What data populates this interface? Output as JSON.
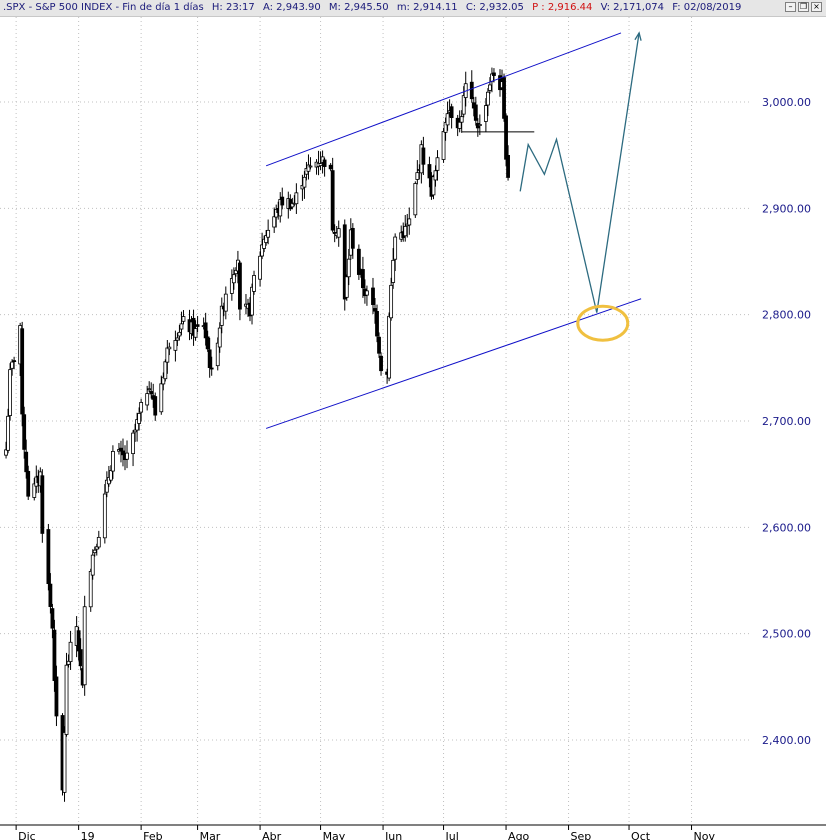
{
  "header": {
    "symbol": ".SPX - S&P 500 INDEX - Fin de día 1 días",
    "h": "H: 23:17",
    "a": "A: 2,943.90",
    "m": "M: 2,945.50",
    "mm": "m: 2,914.11",
    "c": "C: 2,932.05",
    "p": "P : 2,916.44",
    "v": "V: 2,171,074",
    "f": "F: 02/08/2019",
    "minimize_label": "–",
    "restore_label": "❐",
    "close_label": "×"
  },
  "colors": {
    "header_bg": "#e6e6e6",
    "header_text": "#1a1a7a",
    "price_tag": "#d01010",
    "price_label": "#1a1a8a",
    "channel_line": "#1010c8",
    "projection": "#2d6b80",
    "highlight": "#f0c040",
    "candle": "#000000",
    "grid": "#c0c0c0"
  },
  "chart_data": {
    "type": "candlestick",
    "title": ".SPX - S&P 500 INDEX",
    "ylim": [
      2320,
      3080
    ],
    "y_ticks": [
      2400,
      2500,
      2600,
      2700,
      2800,
      2900,
      3000
    ],
    "y_tick_labels": [
      "2,400.00",
      "2,500.00",
      "2,600.00",
      "2,700.00",
      "2,800.00",
      "2,900.00",
      "3,000.00"
    ],
    "x_start": "2018-11-23",
    "x_end": "2019-11-30",
    "months": [
      {
        "date": "2018-12-01",
        "label": "Dic"
      },
      {
        "date": "2019-01-01",
        "label": "19"
      },
      {
        "date": "2019-02-01",
        "label": "Feb"
      },
      {
        "date": "2019-03-01",
        "label": "Mar"
      },
      {
        "date": "2019-04-01",
        "label": "Abr"
      },
      {
        "date": "2019-05-01",
        "label": "May"
      },
      {
        "date": "2019-06-01",
        "label": "Jun"
      },
      {
        "date": "2019-07-01",
        "label": "Jul"
      },
      {
        "date": "2019-08-01",
        "label": "Ago"
      },
      {
        "date": "2019-09-01",
        "label": "Sep"
      },
      {
        "date": "2019-10-01",
        "label": "Oct"
      },
      {
        "date": "2019-11-01",
        "label": "Nov"
      }
    ],
    "close_path": [
      [
        "2018-11-26",
        2673
      ],
      [
        "2018-11-28",
        2743
      ],
      [
        "2018-11-30",
        2760
      ],
      [
        "2018-12-03",
        2790
      ],
      [
        "2018-12-04",
        2700
      ],
      [
        "2018-12-07",
        2633
      ],
      [
        "2018-12-10",
        2637
      ],
      [
        "2018-12-13",
        2650
      ],
      [
        "2018-12-14",
        2600
      ],
      [
        "2018-12-17",
        2545
      ],
      [
        "2018-12-19",
        2506
      ],
      [
        "2018-12-21",
        2416
      ],
      [
        "2018-12-24",
        2351
      ],
      [
        "2018-12-26",
        2467
      ],
      [
        "2018-12-28",
        2485
      ],
      [
        "2018-12-31",
        2507
      ],
      [
        "2019-01-03",
        2447
      ],
      [
        "2019-01-04",
        2532
      ],
      [
        "2019-01-08",
        2574
      ],
      [
        "2019-01-11",
        2596
      ],
      [
        "2019-01-18",
        2670
      ],
      [
        "2019-01-25",
        2664
      ],
      [
        "2019-01-31",
        2704
      ],
      [
        "2019-02-05",
        2737
      ],
      [
        "2019-02-08",
        2707
      ],
      [
        "2019-02-15",
        2775
      ],
      [
        "2019-02-22",
        2792
      ],
      [
        "2019-02-28",
        2784
      ],
      [
        "2019-03-04",
        2792
      ],
      [
        "2019-03-08",
        2743
      ],
      [
        "2019-03-12",
        2791
      ],
      [
        "2019-03-15",
        2822
      ],
      [
        "2019-03-21",
        2854
      ],
      [
        "2019-03-22",
        2800
      ],
      [
        "2019-03-27",
        2805
      ],
      [
        "2019-03-29",
        2834
      ],
      [
        "2019-04-03",
        2873
      ],
      [
        "2019-04-12",
        2907
      ],
      [
        "2019-04-18",
        2905
      ],
      [
        "2019-04-23",
        2933
      ],
      [
        "2019-04-30",
        2946
      ],
      [
        "2019-05-03",
        2945
      ],
      [
        "2019-05-06",
        2932
      ],
      [
        "2019-05-07",
        2884
      ],
      [
        "2019-05-10",
        2881
      ],
      [
        "2019-05-13",
        2812
      ],
      [
        "2019-05-16",
        2876
      ],
      [
        "2019-05-20",
        2840
      ],
      [
        "2019-05-23",
        2822
      ],
      [
        "2019-05-28",
        2802
      ],
      [
        "2019-05-31",
        2752
      ],
      [
        "2019-06-03",
        2744
      ],
      [
        "2019-06-04",
        2803
      ],
      [
        "2019-06-07",
        2873
      ],
      [
        "2019-06-12",
        2879
      ],
      [
        "2019-06-14",
        2887
      ],
      [
        "2019-06-20",
        2954
      ],
      [
        "2019-06-25",
        2917
      ],
      [
        "2019-06-28",
        2942
      ],
      [
        "2019-07-03",
        2996
      ],
      [
        "2019-07-09",
        2979
      ],
      [
        "2019-07-12",
        3014
      ],
      [
        "2019-07-17",
        2985
      ],
      [
        "2019-07-19",
        2976
      ],
      [
        "2019-07-24",
        3019
      ],
      [
        "2019-07-26",
        3026
      ],
      [
        "2019-07-30",
        3013
      ],
      [
        "2019-07-31",
        2980
      ],
      [
        "2019-08-01",
        2953
      ],
      [
        "2019-08-02",
        2932
      ]
    ],
    "channel_upper": [
      [
        "2019-04-04",
        2940
      ],
      [
        "2019-09-27",
        3065
      ]
    ],
    "channel_lower": [
      [
        "2019-04-04",
        2693
      ],
      [
        "2019-10-07",
        2815
      ]
    ],
    "resistance_line": [
      [
        "2019-07-10",
        2972
      ],
      [
        "2019-08-15",
        2972
      ]
    ],
    "projection_path": [
      [
        "2019-08-08",
        2916
      ],
      [
        "2019-08-12",
        2960
      ],
      [
        "2019-08-20",
        2932
      ],
      [
        "2019-08-26",
        2965
      ],
      [
        "2019-09-15",
        2802
      ],
      [
        "2019-10-06",
        3065
      ]
    ],
    "highlight_center": [
      "2019-09-15",
      2792
    ]
  }
}
